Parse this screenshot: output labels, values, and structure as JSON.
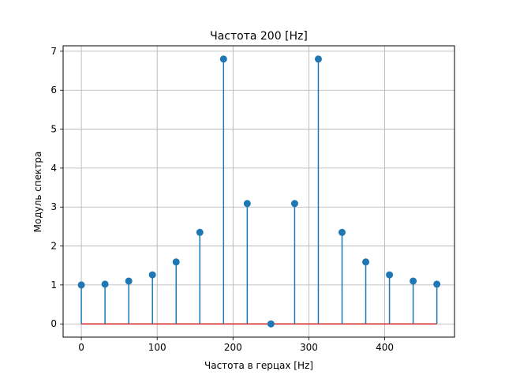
{
  "chart_data": {
    "type": "stem",
    "title": "Частота 200 [Hz]",
    "xlabel": "Частота в герцах [Hz]",
    "ylabel": "Модуль спектра",
    "xlim": [
      -24,
      492
    ],
    "ylim": [
      -0.34,
      7.14
    ],
    "xticks": [
      0,
      100,
      200,
      300,
      400
    ],
    "yticks": [
      0,
      1,
      2,
      3,
      4,
      5,
      6,
      7
    ],
    "grid": true,
    "x": [
      0,
      31.25,
      62.5,
      93.75,
      125,
      156.25,
      187.5,
      218.75,
      250,
      281.25,
      312.5,
      343.75,
      375,
      406.25,
      437.5,
      468.75
    ],
    "y": [
      1.0,
      1.02,
      1.1,
      1.26,
      1.59,
      2.35,
      6.8,
      3.09,
      0.0,
      3.09,
      6.8,
      2.35,
      1.59,
      1.26,
      1.1,
      1.02
    ],
    "colors": {
      "stem": "#1f77b4",
      "marker": "#1f77b4",
      "baseline": "#d62728",
      "grid": "#b0b0b0"
    }
  }
}
